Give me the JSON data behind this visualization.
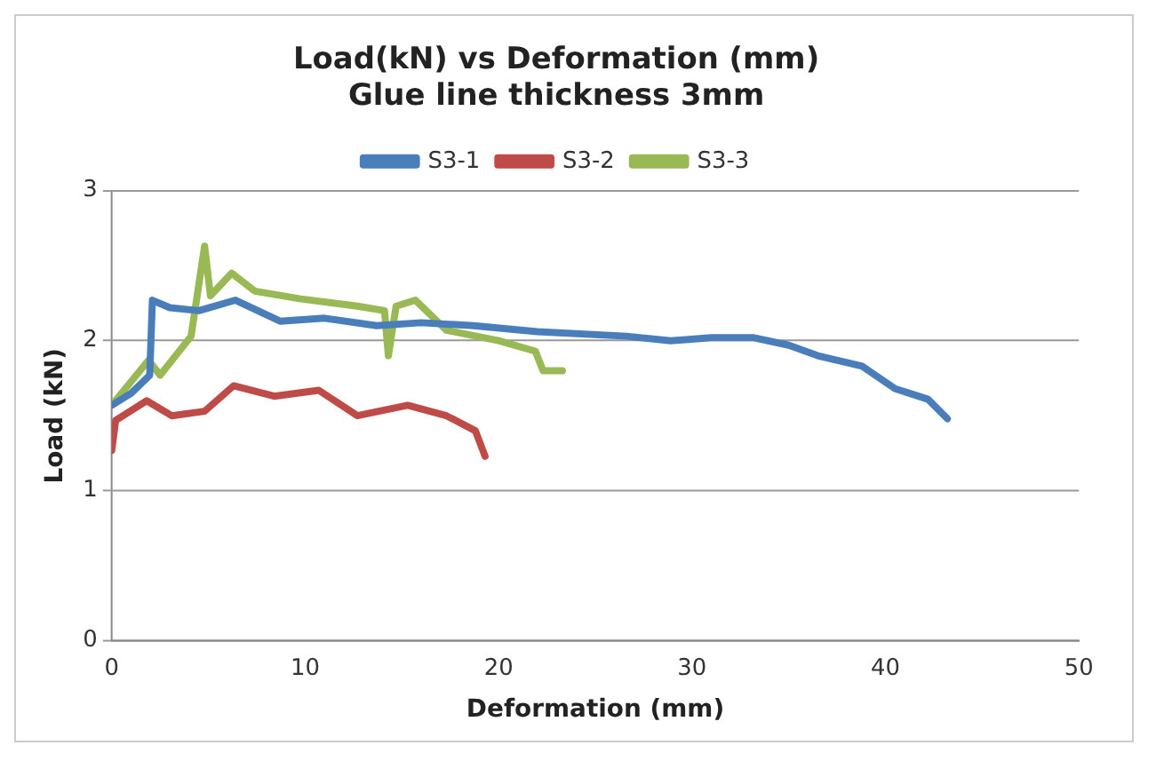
{
  "chart_data": {
    "type": "line",
    "title": [
      "Load(kN) vs Deformation (mm)",
      "Glue line thickness 3mm"
    ],
    "xlabel": "Deformation (mm)",
    "ylabel": "Load (kN)",
    "xlim": [
      0,
      50
    ],
    "xticks": [
      0,
      10,
      20,
      30,
      40,
      50
    ],
    "ylim": [
      0,
      3
    ],
    "yticks": [
      0,
      1,
      2,
      3
    ],
    "grid": "y",
    "legend": "top",
    "marker": "none",
    "line_style": "solid",
    "series": [
      {
        "name": "S3-1",
        "color": "#4a7ebb",
        "x": [
          0,
          1.0,
          1.96,
          2.1,
          3.0,
          4.5,
          6.4,
          8.7,
          11,
          13.7,
          16,
          18.7,
          22,
          26.6,
          28.9,
          31,
          33.2,
          35,
          36.5,
          38.8,
          40.5,
          42.2,
          43.2
        ],
        "values": [
          1.57,
          1.65,
          1.77,
          2.27,
          2.22,
          2.2,
          2.27,
          2.13,
          2.15,
          2.1,
          2.12,
          2.1,
          2.06,
          2.03,
          2.0,
          2.02,
          2.02,
          1.97,
          1.9,
          1.83,
          1.68,
          1.61,
          1.48
        ]
      },
      {
        "name": "S3-2",
        "color": "#be4b48",
        "x": [
          0,
          0.2,
          1.8,
          3.1,
          4.8,
          6.3,
          8.4,
          10.7,
          12.7,
          15.3,
          17.3,
          18.8,
          19.3
        ],
        "values": [
          1.27,
          1.47,
          1.6,
          1.5,
          1.53,
          1.7,
          1.63,
          1.67,
          1.5,
          1.57,
          1.5,
          1.4,
          1.23
        ]
      },
      {
        "name": "S3-3",
        "color": "#98b954",
        "x": [
          0,
          1.9,
          2.5,
          4.1,
          4.8,
          5.1,
          6.2,
          7.4,
          9.7,
          12.7,
          14.1,
          14.3,
          14.7,
          15.7,
          17.3,
          20,
          21.9,
          22.3,
          23.3
        ],
        "values": [
          1.57,
          1.87,
          1.77,
          2.03,
          2.63,
          2.3,
          2.45,
          2.33,
          2.28,
          2.23,
          2.2,
          1.9,
          2.23,
          2.27,
          2.07,
          2.0,
          1.93,
          1.8,
          1.8
        ]
      }
    ]
  }
}
